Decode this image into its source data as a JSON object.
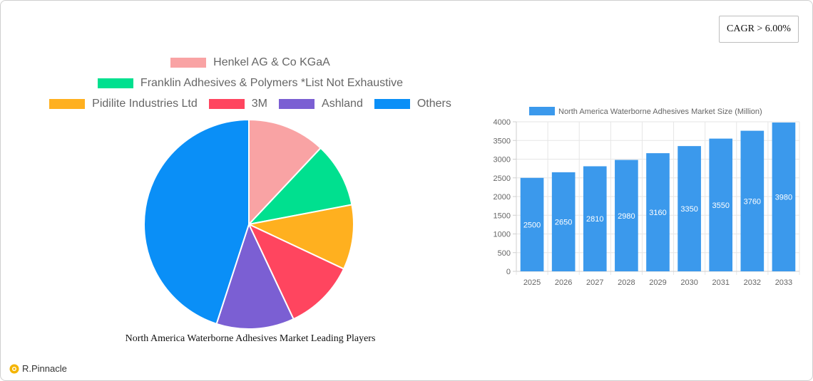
{
  "cagr": {
    "label": "CAGR > 6.00%"
  },
  "brand": {
    "name": "R.Pinnacle"
  },
  "colors": {
    "henkel": "#f9a3a4",
    "franklin": "#00e08f",
    "pidilite": "#ffb01f",
    "threem": "#ff455f",
    "ashland": "#7b5fd3",
    "others": "#0a8ff7",
    "bar": "#3b99ec"
  },
  "chart_data": [
    {
      "type": "pie",
      "title": "North America Waterborne Adhesives Market Leading Players",
      "legend_position": "top",
      "slices": [
        {
          "label": "Henkel AG & Co  KGaA",
          "value": 12
        },
        {
          "label": "Franklin Adhesives & Polymers *List Not Exhaustive",
          "value": 10
        },
        {
          "label": "Pidilite Industries Ltd",
          "value": 10
        },
        {
          "label": "3M",
          "value": 11
        },
        {
          "label": "Ashland",
          "value": 12
        },
        {
          "label": "Others",
          "value": 45
        }
      ]
    },
    {
      "type": "bar",
      "legend_position": "top",
      "series": [
        {
          "name": "North America Waterborne Adhesives Market Size (Million)",
          "values": [
            2500,
            2650,
            2810,
            2980,
            3160,
            3350,
            3550,
            3760,
            3980
          ]
        }
      ],
      "categories": [
        "2025",
        "2026",
        "2027",
        "2028",
        "2029",
        "2030",
        "2031",
        "2032",
        "2033"
      ],
      "ylim": [
        0,
        4000
      ],
      "yticks": [
        0,
        500,
        1000,
        1500,
        2000,
        2500,
        3000,
        3500,
        4000
      ],
      "grid": true,
      "data_labels": true
    }
  ]
}
